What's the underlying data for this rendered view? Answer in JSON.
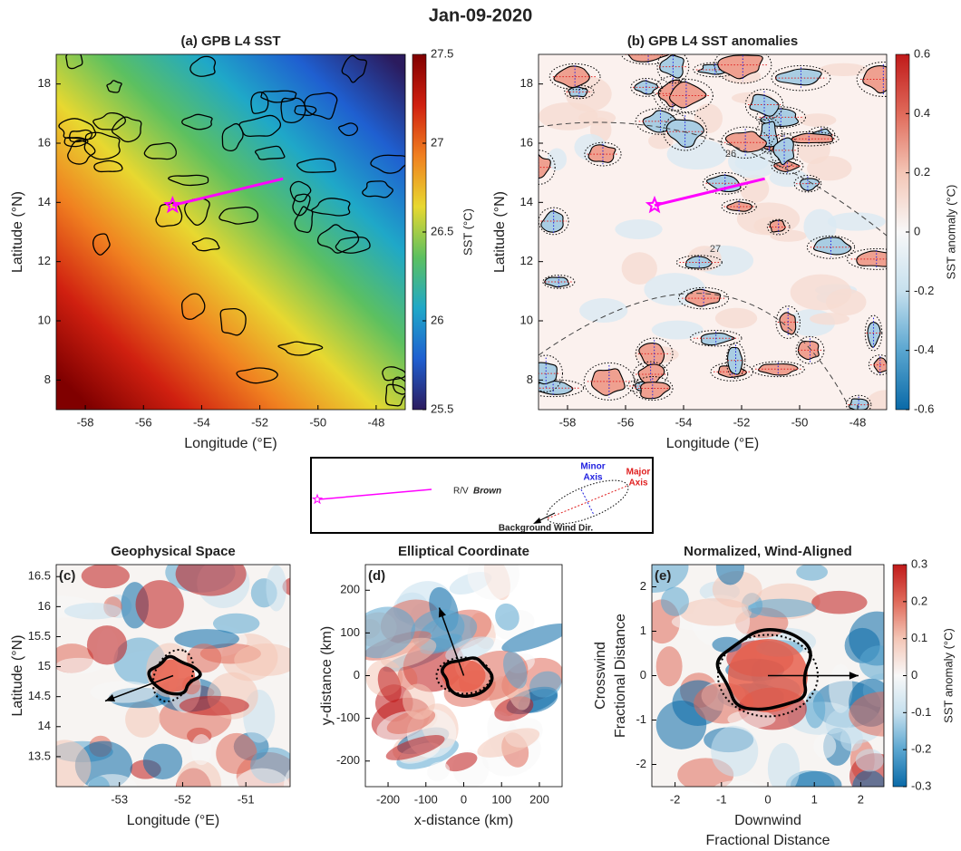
{
  "title": "Jan-09-2020",
  "chart_data": [
    {
      "type": "heatmap",
      "title": "(a) GPB L4 SST",
      "xlabel": "Longitude (°E)",
      "ylabel": "Latitude (°N)",
      "xlim": [
        -59,
        -47
      ],
      "ylim": [
        7,
        19
      ],
      "xticks": [
        -58,
        -56,
        -54,
        -52,
        -50,
        -48
      ],
      "yticks": [
        8,
        10,
        12,
        14,
        16,
        18
      ],
      "colorbar": {
        "label": "SST (°C)",
        "lim": [
          25.5,
          27.5
        ],
        "ticks": [
          25.5,
          26,
          26.5,
          27,
          27.5
        ],
        "colors": [
          "#2b1b5e",
          "#1f5fd0",
          "#1fa8c8",
          "#5cc060",
          "#e8d830",
          "#f08020",
          "#d02010",
          "#800000"
        ]
      },
      "track": {
        "color": "#ff00ff",
        "x": [
          -55,
          -51.2
        ],
        "y": [
          13.9,
          14.8
        ]
      }
    },
    {
      "type": "heatmap",
      "title": "(b) GPB L4 SST anomalies",
      "xlabel": "Longitude (°E)",
      "ylabel": "Latitude (°N)",
      "xlim": [
        -59,
        -47
      ],
      "ylim": [
        7,
        19
      ],
      "xticks": [
        -58,
        -56,
        -54,
        -52,
        -50,
        -48
      ],
      "yticks": [
        8,
        10,
        12,
        14,
        16,
        18
      ],
      "colorbar": {
        "label": "SST anomaly (°C)",
        "lim": [
          -0.6,
          0.6
        ],
        "ticks": [
          -0.6,
          -0.4,
          -0.2,
          0,
          0.2,
          0.4,
          0.6
        ],
        "colors": [
          "#0a6aa8",
          "#5aa6d0",
          "#c6e0ee",
          "#f8f8f8",
          "#f4c6b6",
          "#e06a5a",
          "#c01a1a"
        ]
      },
      "annotations": [
        "26",
        "27"
      ],
      "track": {
        "color": "#ff00ff",
        "x": [
          -55,
          -51.2
        ],
        "y": [
          13.9,
          14.8
        ]
      }
    },
    {
      "type": "heatmap",
      "title": "Geophysical Space",
      "label": "(c)",
      "xlabel": "Longitude (°E)",
      "ylabel": "Latitude (°N)",
      "xlim": [
        -54,
        -50.3
      ],
      "ylim": [
        13,
        16.7
      ],
      "xticks": [
        -53,
        -52,
        -51
      ],
      "yticks": [
        13.5,
        14,
        14.5,
        15,
        15.5,
        16,
        16.5
      ]
    },
    {
      "type": "heatmap",
      "title": "Elliptical Coordinate",
      "label": "(d)",
      "xlabel": "x-distance (km)",
      "ylabel": "y-distance (km)",
      "xlim": [
        -260,
        260
      ],
      "ylim": [
        -260,
        260
      ],
      "xticks": [
        -200,
        -100,
        0,
        100,
        200
      ],
      "yticks": [
        -200,
        -100,
        0,
        100,
        200
      ]
    },
    {
      "type": "heatmap",
      "title": "Normalized, Wind-Aligned",
      "label": "(e)",
      "xlabel": [
        "Downwind",
        "Fractional Distance"
      ],
      "ylabel": [
        "Crosswind",
        "Fractional Distance"
      ],
      "xlim": [
        -2.5,
        2.5
      ],
      "ylim": [
        -2.5,
        2.5
      ],
      "xticks": [
        -2,
        -1,
        0,
        1,
        2
      ],
      "yticks": [
        -2,
        -1,
        0,
        1,
        2
      ],
      "colorbar": {
        "label": "SST anomaly (°C)",
        "lim": [
          -0.3,
          0.3
        ],
        "ticks": [
          -0.3,
          -0.2,
          -0.1,
          0,
          0.1,
          0.2,
          0.3
        ],
        "colors": [
          "#0a6aa8",
          "#5aa6d0",
          "#c6e0ee",
          "#f8f8f8",
          "#f4c6b6",
          "#e06a5a",
          "#c01a1a"
        ]
      }
    }
  ],
  "key_legend": {
    "track": "R/V",
    "vessel": "Brown",
    "minor": [
      "Minor",
      "Axis"
    ],
    "major": [
      "Major",
      "Axis"
    ],
    "wind": "Background Wind Dir."
  }
}
